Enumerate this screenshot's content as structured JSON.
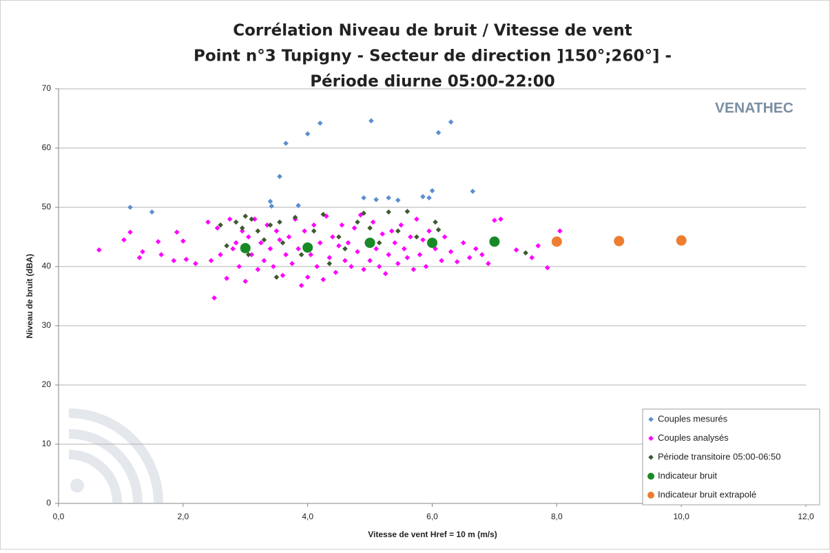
{
  "chart_data": {
    "type": "scatter",
    "title": [
      "Corrélation Niveau de bruit / Vitesse de vent",
      "Point n°3 Tupigny - Secteur de direction ]150°;260°] -",
      "Période diurne 05:00-22:00"
    ],
    "logo": "VENATHEC",
    "x_label": "Vitesse de vent Href = 10 m (m/s)",
    "y_label": "Niveau de bruit (dBA)",
    "xlim": [
      0,
      12
    ],
    "ylim": [
      0,
      70
    ],
    "xticks": [
      {
        "value": 0,
        "label": "0,0"
      },
      {
        "value": 2,
        "label": "2,0"
      },
      {
        "value": 4,
        "label": "4,0"
      },
      {
        "value": 6,
        "label": "6,0"
      },
      {
        "value": 8,
        "label": "8,0"
      },
      {
        "value": 10,
        "label": "10,0"
      },
      {
        "value": 12,
        "label": "12,0"
      }
    ],
    "yticks": [
      0,
      10,
      20,
      30,
      40,
      50,
      60,
      70
    ],
    "grid": true,
    "legend": "bottom-right",
    "series": [
      {
        "name": "Couples mesurés",
        "color": "#5b8fd0",
        "marker": "diamond",
        "x": [
          1.15,
          1.5,
          3.4,
          3.42,
          3.55,
          3.65,
          3.85,
          4.0,
          4.2,
          4.9,
          5.02,
          5.1,
          5.3,
          5.45,
          5.85,
          5.95,
          6.0,
          6.1,
          6.3,
          6.65
        ],
        "values": [
          50,
          49.2,
          51,
          50.2,
          55.2,
          60.8,
          50.3,
          62.4,
          64.2,
          51.6,
          64.6,
          51.3,
          51.6,
          51.2,
          51.8,
          51.6,
          52.8,
          62.6,
          64.4,
          52.7
        ]
      },
      {
        "name": "Couples analysés",
        "color": "#ff00ff",
        "marker": "diamond",
        "x": [
          0.65,
          1.05,
          1.15,
          1.3,
          1.35,
          1.6,
          1.65,
          1.85,
          1.9,
          2.0,
          2.05,
          2.2,
          2.4,
          2.45,
          2.5,
          2.55,
          2.6,
          2.7,
          2.75,
          2.8,
          2.85,
          2.9,
          2.95,
          3.0,
          3.05,
          3.1,
          3.15,
          3.2,
          3.25,
          3.3,
          3.35,
          3.4,
          3.45,
          3.5,
          3.55,
          3.6,
          3.65,
          3.7,
          3.75,
          3.8,
          3.85,
          3.9,
          3.95,
          4.0,
          4.05,
          4.1,
          4.15,
          4.2,
          4.25,
          4.3,
          4.35,
          4.4,
          4.45,
          4.5,
          4.55,
          4.6,
          4.65,
          4.7,
          4.75,
          4.8,
          4.85,
          4.9,
          4.95,
          5.0,
          5.05,
          5.1,
          5.15,
          5.2,
          5.25,
          5.3,
          5.35,
          5.4,
          5.45,
          5.5,
          5.55,
          5.6,
          5.65,
          5.7,
          5.75,
          5.8,
          5.85,
          5.9,
          5.95,
          6.05,
          6.15,
          6.2,
          6.3,
          6.4,
          6.5,
          6.6,
          6.7,
          6.8,
          6.9,
          7.0,
          7.1,
          7.35,
          7.6,
          7.7,
          7.85,
          8.05
        ],
        "values": [
          42.8,
          44.5,
          45.8,
          41.5,
          42.5,
          44.2,
          42,
          41,
          45.8,
          44.3,
          41.2,
          40.5,
          47.5,
          41,
          34.7,
          46.5,
          42,
          38,
          48,
          43,
          44,
          40,
          46,
          37.5,
          45,
          42,
          48,
          39.5,
          44,
          41,
          47,
          43,
          40,
          46,
          44.5,
          38.5,
          42,
          45,
          40.5,
          48,
          43,
          36.8,
          46,
          38.2,
          42,
          47,
          40,
          44,
          37.8,
          48.5,
          41.5,
          45,
          39,
          43.5,
          47,
          41,
          44,
          40,
          46.5,
          42.5,
          48.7,
          39.5,
          44,
          41,
          47.5,
          43,
          40,
          45.5,
          38.8,
          42,
          46,
          44,
          40.5,
          47,
          43,
          41.5,
          45,
          39.5,
          48,
          42,
          44.5,
          40,
          46,
          43,
          41,
          45,
          42.5,
          40.8,
          44,
          41.5,
          43,
          42,
          40.5,
          47.8,
          48,
          42.8,
          41.5,
          43.5,
          39.8,
          46
        ]
      },
      {
        "name": "Période transitoire 05:00-06:50",
        "color": "#3d5a2e",
        "marker": "diamond",
        "x": [
          2.6,
          2.7,
          2.85,
          2.95,
          3.0,
          3.05,
          3.1,
          3.2,
          3.3,
          3.4,
          3.5,
          3.55,
          3.6,
          3.8,
          3.9,
          4.1,
          4.25,
          4.35,
          4.5,
          4.6,
          4.8,
          4.9,
          5.0,
          5.15,
          5.3,
          5.45,
          5.6,
          5.75,
          6.05,
          6.1,
          7.5
        ],
        "values": [
          47,
          43.5,
          47.5,
          46.5,
          48.5,
          42,
          48,
          46,
          44.5,
          47,
          38.2,
          47.5,
          44,
          48.3,
          42,
          46,
          48.8,
          40.5,
          45,
          43,
          47.5,
          49,
          46.5,
          44,
          49.2,
          46,
          49.3,
          45,
          47.5,
          46.2,
          42.3
        ]
      },
      {
        "name": "Indicateur bruit",
        "color": "#178a26",
        "marker": "circle",
        "x": [
          3,
          4,
          5,
          6,
          7
        ],
        "values": [
          43.1,
          43.2,
          44,
          44,
          44.2
        ]
      },
      {
        "name": "Indicateur bruit extrapolé",
        "color": "#ed7d31",
        "marker": "circle",
        "x": [
          8,
          9,
          10
        ],
        "values": [
          44.2,
          44.3,
          44.4
        ]
      }
    ]
  }
}
